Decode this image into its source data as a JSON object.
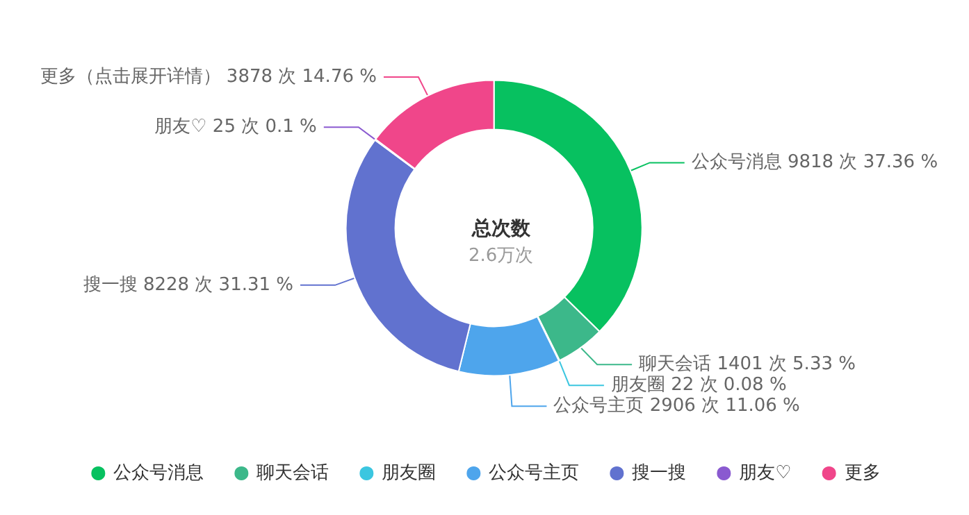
{
  "chart_data": {
    "type": "donut",
    "title": "总次数",
    "subtitle": "2.6万次",
    "categories": [
      "公众号消息",
      "聊天会话",
      "朋友圈",
      "公众号主页",
      "搜一搜",
      "朋友♡",
      "更多"
    ],
    "values": [
      9818,
      1401,
      22,
      2906,
      8228,
      25,
      3878
    ],
    "value_labels": [
      "公众号消息 9818 次 37.36 %",
      "聊天会话 1401 次 5.33 %",
      "朋友圈 22 次 0.08 %",
      "公众号主页 2906 次 11.06 %",
      "搜一搜 8228 次 31.31 %",
      "朋友♡ 25 次 0.1 %",
      "更多（点击展开详情） 3878 次 14.76 %"
    ],
    "colors": [
      "#07c160",
      "#3cb88a",
      "#3bc6e0",
      "#4ea5ec",
      "#6172cf",
      "#8a5ad0",
      "#f0468a"
    ],
    "legend": "bottom"
  }
}
